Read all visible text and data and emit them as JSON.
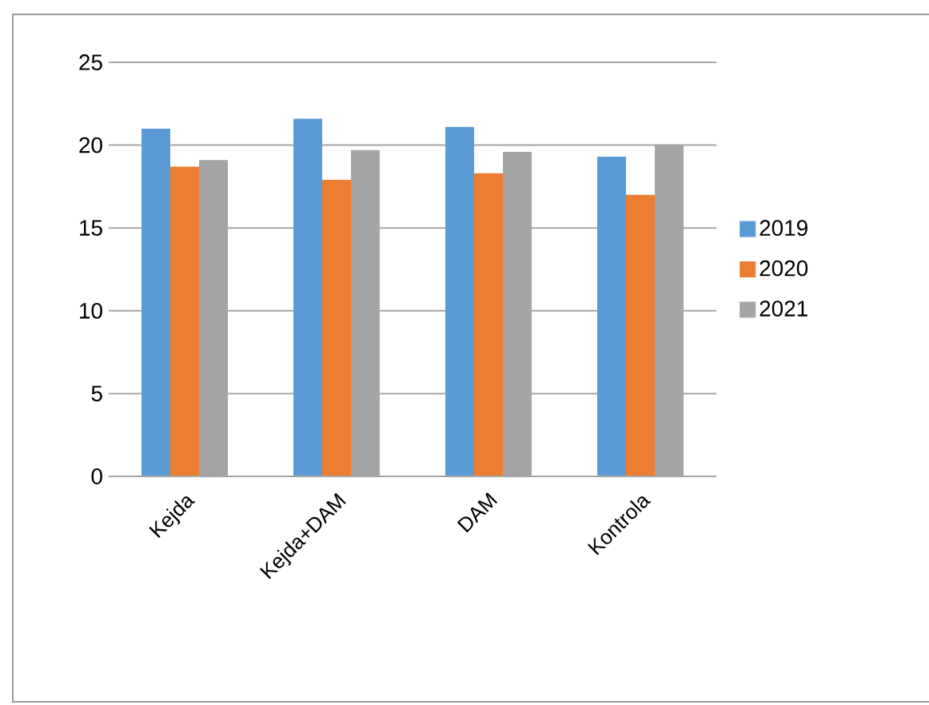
{
  "chart_data": {
    "type": "bar",
    "categories": [
      "Kejda",
      "Kejda+DAM",
      "DAM",
      "Kontrola"
    ],
    "series": [
      {
        "name": "2019",
        "color": "#5b9bd5",
        "values": [
          21.0,
          21.6,
          21.1,
          19.3
        ]
      },
      {
        "name": "2020",
        "color": "#ed7d31",
        "values": [
          18.7,
          17.9,
          18.3,
          17.0
        ]
      },
      {
        "name": "2021",
        "color": "#a5a5a5",
        "values": [
          19.1,
          19.7,
          19.6,
          20.0
        ]
      }
    ],
    "ylim": [
      0,
      25
    ],
    "yticks": [
      0,
      5,
      10,
      15,
      20,
      25
    ],
    "grid": "y",
    "legend": "right"
  }
}
